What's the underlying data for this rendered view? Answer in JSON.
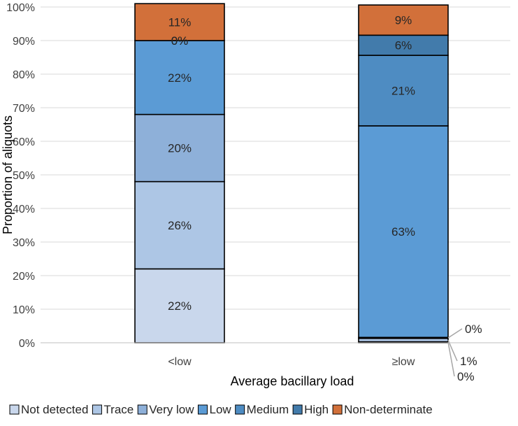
{
  "chart_data": {
    "type": "bar",
    "stacked": true,
    "title": "",
    "xlabel": "Average bacillary load",
    "ylabel": "Proportion of aliquots",
    "ylim": [
      0,
      100
    ],
    "yticks": [
      "0%",
      "10%",
      "20%",
      "30%",
      "40%",
      "50%",
      "60%",
      "70%",
      "80%",
      "90%",
      "100%"
    ],
    "gridlines": true,
    "legend_position": "bottom",
    "categories": [
      "<low",
      "≥low"
    ],
    "series": [
      {
        "name": "Not detected",
        "color": "#c9d7ec",
        "values": [
          22,
          0.3
        ],
        "labels": [
          "22%",
          "0%"
        ]
      },
      {
        "name": "Trace",
        "color": "#adc6e5",
        "values": [
          26,
          1
        ],
        "labels": [
          "26%",
          "1%"
        ]
      },
      {
        "name": "Very low",
        "color": "#8eb0d9",
        "values": [
          20,
          0.3
        ],
        "labels": [
          "20%",
          "0%"
        ]
      },
      {
        "name": "Low",
        "color": "#5b9bd5",
        "values": [
          22,
          63
        ],
        "labels": [
          "22%",
          "63%"
        ]
      },
      {
        "name": "Medium",
        "color": "#4e8cc2",
        "values": [
          0,
          21
        ],
        "labels": [
          "0%",
          "21%"
        ]
      },
      {
        "name": "High",
        "color": "#427bab",
        "values": [
          0,
          6
        ],
        "labels": [
          "0%",
          "6%"
        ]
      },
      {
        "name": "Non-determinate",
        "color": "#d2703a",
        "values": [
          11,
          9
        ],
        "labels": [
          "11%",
          "9%"
        ]
      }
    ]
  }
}
